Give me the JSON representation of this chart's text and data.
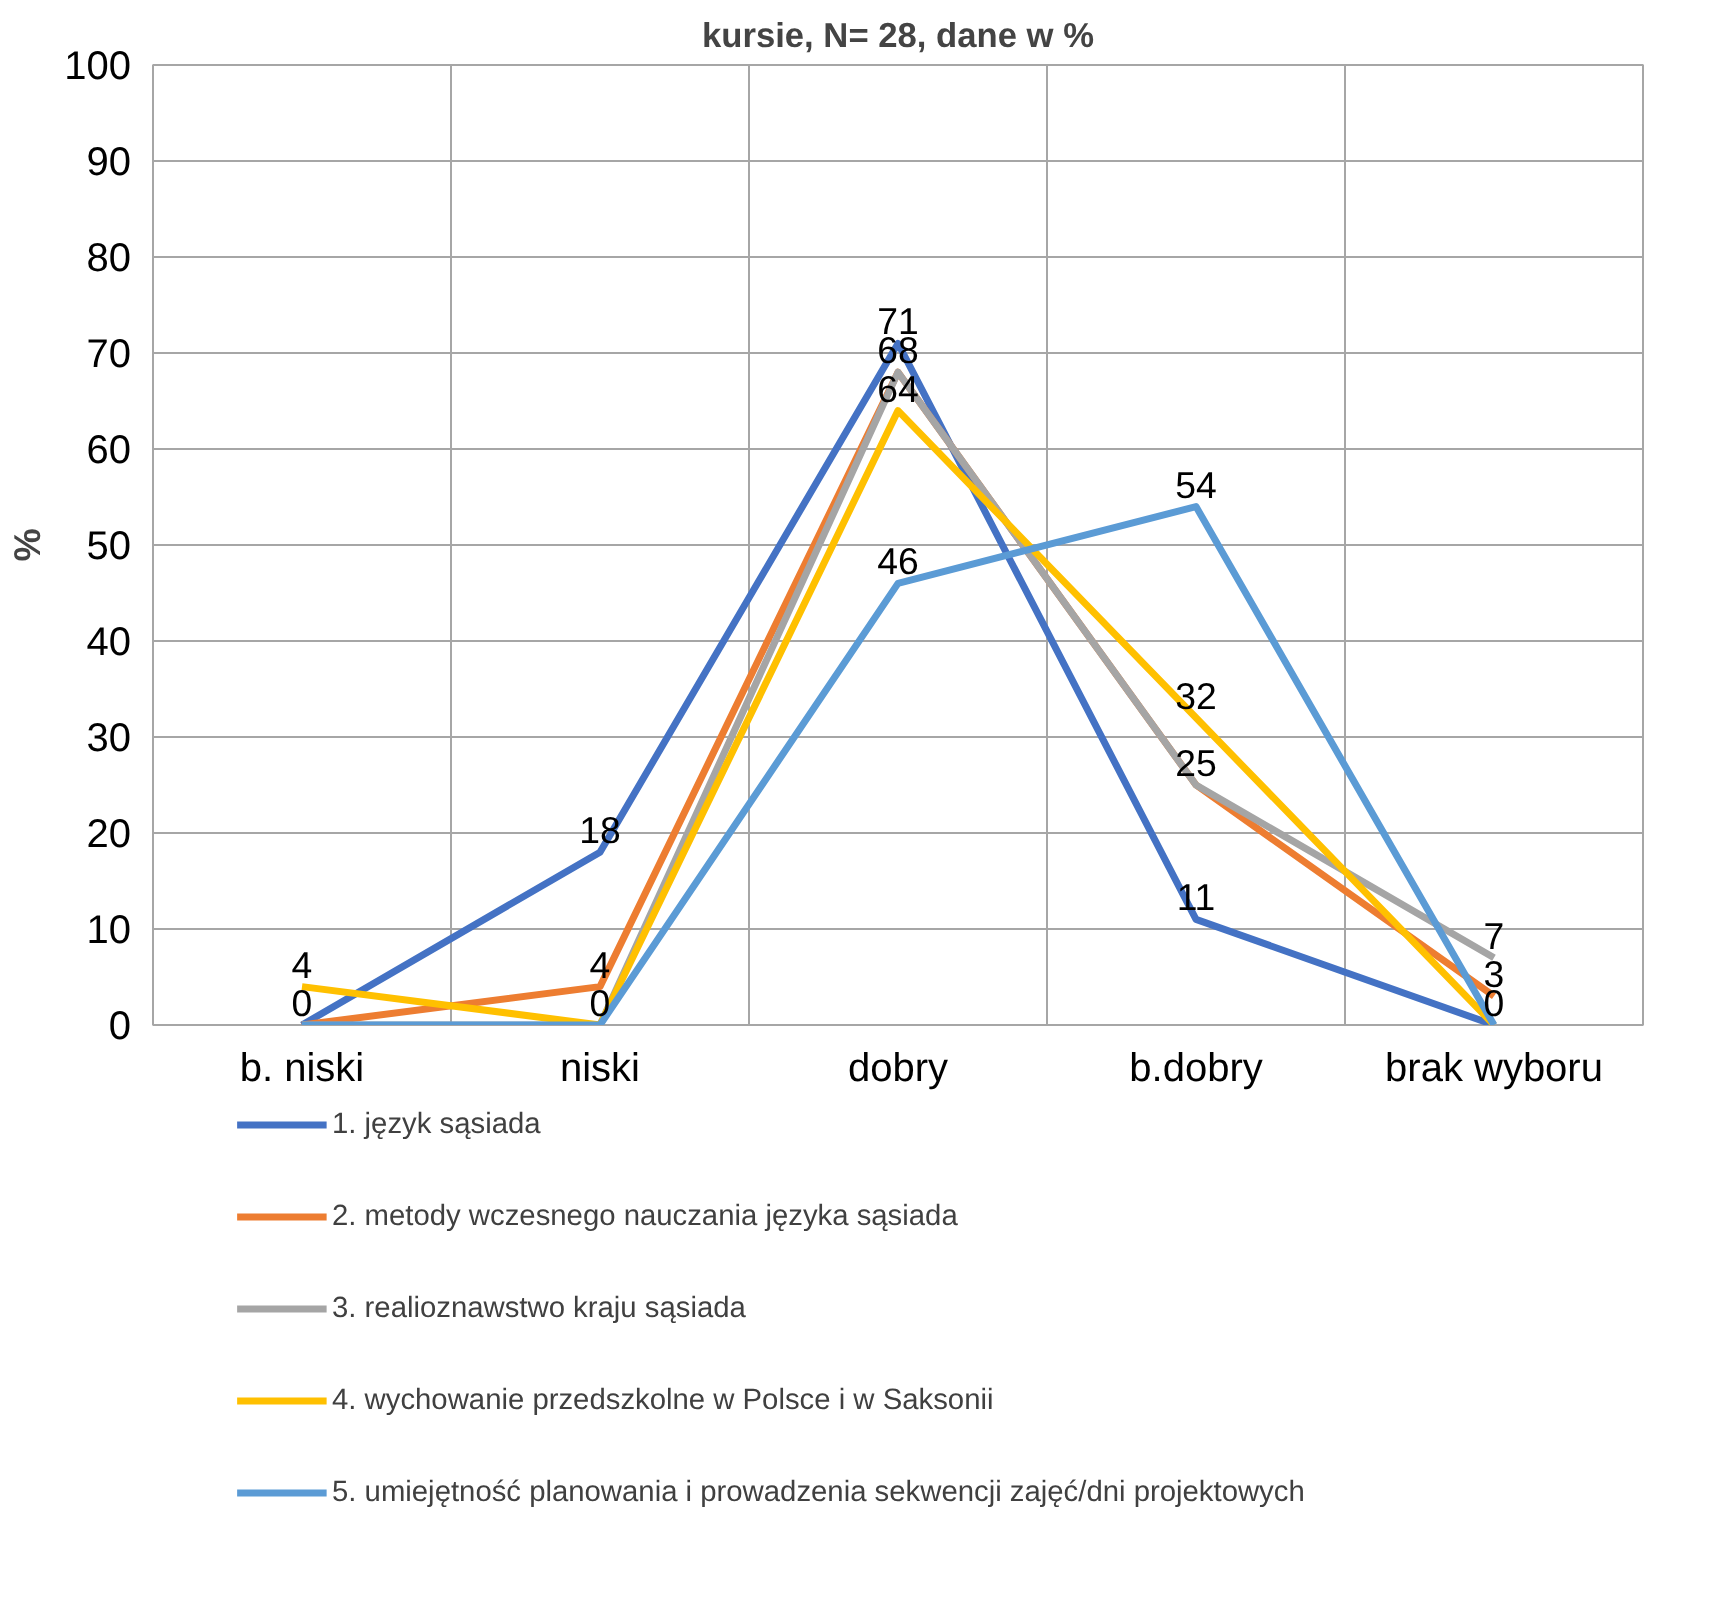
{
  "chart_data": {
    "type": "line",
    "title": "kursie, N= 28, dane w %",
    "ylabel": "%",
    "categories": [
      "b. niski",
      "niski",
      "dobry",
      "b.dobry",
      "brak wyboru"
    ],
    "series": [
      {
        "name": "1. język sąsiada",
        "color": "#4472c4",
        "values": [
          0,
          18,
          71,
          11,
          0
        ],
        "value_labels": [
          "0",
          "18",
          "71",
          "11",
          "0"
        ]
      },
      {
        "name": "2. metody wczesnego nauczania języka sąsiada",
        "color": "#ed7d31",
        "values": [
          0,
          4,
          68,
          25,
          3
        ],
        "value_labels": [
          null,
          "4",
          "68",
          "25",
          "3"
        ]
      },
      {
        "name": "3. realioznawstwo kraju sąsiada",
        "color": "#a5a5a5",
        "values": [
          0,
          0,
          68,
          25,
          7
        ],
        "value_labels": [
          null,
          "0",
          null,
          null,
          "7"
        ]
      },
      {
        "name": "4. wychowanie przedszkolne w Polsce i w Saksonii",
        "color": "#ffc000",
        "values": [
          4,
          0,
          64,
          32,
          0
        ],
        "value_labels": [
          "4",
          null,
          "64",
          "32",
          null
        ]
      },
      {
        "name": "5. umiejętność planowania i prowadzenia sekwencji zajęć/dni projektowych",
        "color": "#5b9bd5",
        "values": [
          0,
          0,
          46,
          54,
          0
        ],
        "value_labels": [
          null,
          null,
          "46",
          "54",
          null
        ]
      }
    ],
    "ylim": [
      0,
      100
    ],
    "yticks": [
      0,
      10,
      20,
      30,
      40,
      50,
      60,
      70,
      80,
      90,
      100
    ],
    "grid": true,
    "legend": "bottom",
    "marker": "none",
    "line_style": "solid"
  }
}
